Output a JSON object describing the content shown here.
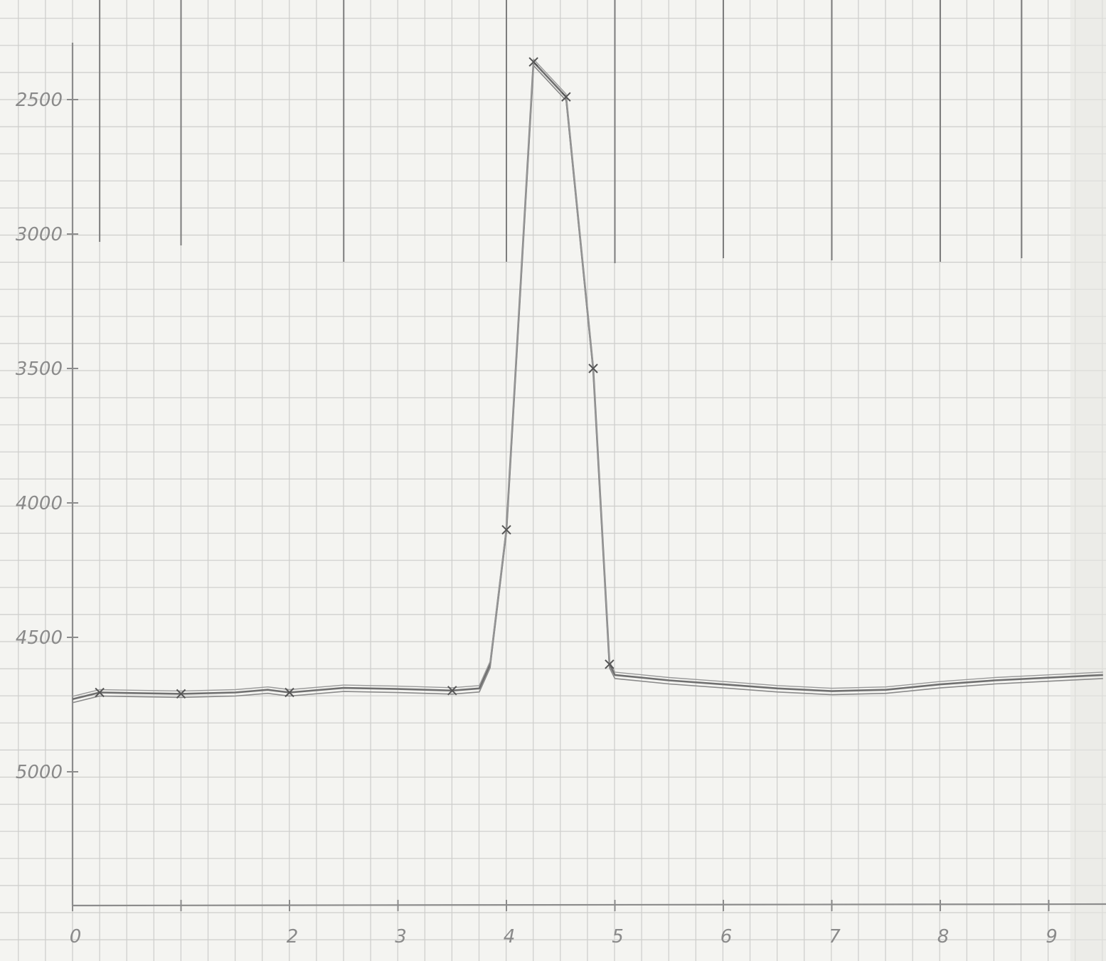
{
  "chart_data": {
    "type": "line",
    "title": "",
    "xlabel": "",
    "ylabel": "",
    "grid": true,
    "x_axis": {
      "range": [
        0,
        9.5
      ],
      "ticks": [
        0,
        1,
        2,
        3,
        4,
        5,
        6,
        7,
        8,
        9
      ],
      "tick_labels": [
        "0",
        "",
        "2",
        "3",
        "4",
        "5",
        "6",
        "7",
        "8",
        "9"
      ]
    },
    "y_axis": {
      "range": [
        2330,
        5500
      ],
      "inverted": true,
      "ticks": [
        2500,
        3000,
        3500,
        4000,
        4500,
        5000
      ],
      "tick_labels": [
        "2500",
        "3000",
        "3500",
        "4000",
        "4500",
        "5000"
      ]
    },
    "vertical_markers_x": [
      0.25,
      1.0,
      2.5,
      4.0,
      5.0,
      6.0,
      7.0,
      8.0,
      8.75
    ],
    "series": [
      {
        "points": [
          [
            0.0,
            4730
          ],
          [
            0.25,
            4705
          ],
          [
            0.5,
            4707
          ],
          [
            1.0,
            4710
          ],
          [
            1.5,
            4705
          ],
          [
            1.8,
            4695
          ],
          [
            2.0,
            4705
          ],
          [
            2.5,
            4688
          ],
          [
            3.0,
            4692
          ],
          [
            3.5,
            4698
          ],
          [
            3.75,
            4690
          ],
          [
            3.85,
            4600
          ],
          [
            4.0,
            4100
          ],
          [
            4.25,
            2360
          ],
          [
            4.55,
            2490
          ],
          [
            4.8,
            3500
          ],
          [
            4.95,
            4600
          ],
          [
            5.0,
            4640
          ],
          [
            5.5,
            4660
          ],
          [
            6.0,
            4675
          ],
          [
            6.5,
            4690
          ],
          [
            7.0,
            4700
          ],
          [
            7.5,
            4695
          ],
          [
            8.0,
            4675
          ],
          [
            8.5,
            4660
          ],
          [
            9.0,
            4650
          ],
          [
            9.5,
            4640
          ]
        ],
        "markers_x": [
          0.25,
          1.0,
          2.0,
          3.5,
          4.0,
          4.25,
          4.55,
          4.8,
          4.95
        ]
      }
    ]
  }
}
